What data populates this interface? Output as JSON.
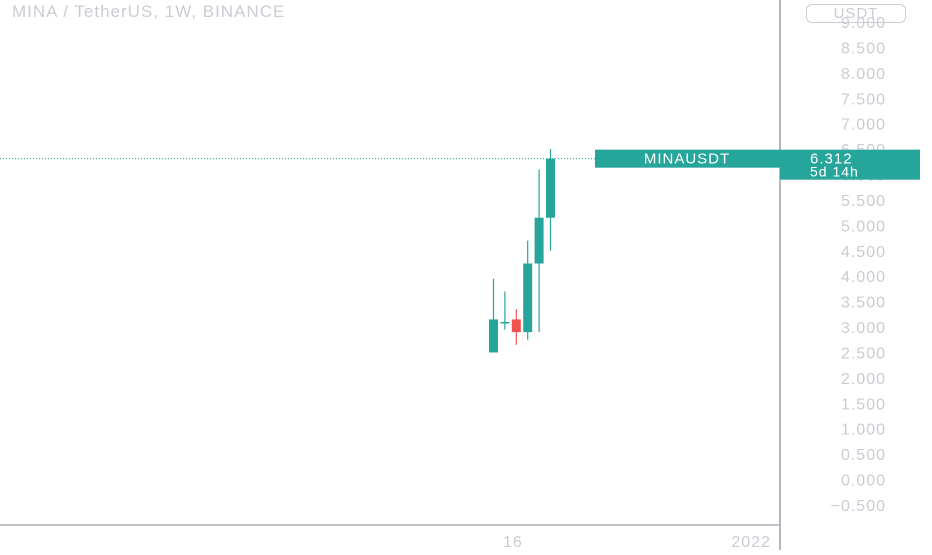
{
  "title": "MINA / TetherUS, 1W, BINANCE",
  "currency_label": "USDT",
  "colors": {
    "up": "#26a69a",
    "down": "#ef5350",
    "axis_text": "#c9ccd3",
    "divider": "#9aa0a6",
    "price_line": "#26a69a",
    "background": "#ffffff"
  },
  "price_tag": {
    "symbol": "MINAUSDT",
    "price": "6.312",
    "countdown": "5d 14h"
  },
  "chart_data": {
    "type": "candlestick",
    "y_axis": {
      "min": -0.5,
      "max": 9.0,
      "ticks": [
        9.0,
        8.5,
        8.0,
        7.5,
        7.0,
        6.5,
        6.0,
        5.5,
        5.0,
        4.5,
        4.0,
        3.5,
        3.0,
        2.5,
        2.0,
        1.5,
        1.0,
        0.5,
        0.0,
        -0.5
      ],
      "tick_labels": [
        "9.000",
        "8.500",
        "8.000",
        "7.500",
        "7.000",
        "6.500",
        "6.000",
        "5.500",
        "5.000",
        "4.500",
        "4.000",
        "3.500",
        "3.000",
        "2.500",
        "2.000",
        "1.500",
        "1.000",
        "0.500",
        "0.000",
        "−0.500"
      ]
    },
    "x_axis": {
      "tick_labels": [
        {
          "label": "16",
          "after_candle": 1.7
        },
        {
          "label": "2022",
          "after_candle": 22.6
        }
      ]
    },
    "last_price": 6.312,
    "candles": [
      {
        "open": 2.5,
        "high": 3.95,
        "low": 2.5,
        "close": 3.15
      },
      {
        "open": 3.1,
        "high": 3.7,
        "low": 2.95,
        "close": 3.1
      },
      {
        "open": 3.15,
        "high": 3.35,
        "low": 2.65,
        "close": 2.9
      },
      {
        "open": 2.9,
        "high": 4.7,
        "low": 2.75,
        "close": 4.25
      },
      {
        "open": 4.25,
        "high": 6.1,
        "low": 2.9,
        "close": 5.15
      },
      {
        "open": 5.15,
        "high": 6.5,
        "low": 4.5,
        "close": 6.312
      }
    ]
  }
}
